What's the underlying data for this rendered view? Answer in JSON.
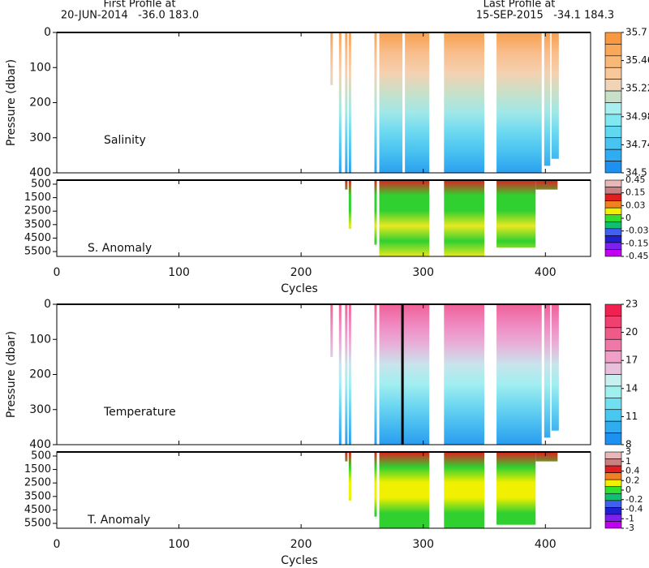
{
  "header": {
    "first_label": "First Profile at",
    "first_info": "20-JUN-2014   -36.0 183.0",
    "last_label": "Last Profile at",
    "last_info": "15-SEP-2015   -34.1 184.3"
  },
  "chart_data": [
    {
      "type": "section",
      "title": "Salinity",
      "ylabel": "Pressure (dbar)",
      "xlim": [
        0,
        437
      ],
      "xticks": [
        0,
        100,
        200,
        300,
        400
      ],
      "ylim": [
        400,
        0
      ],
      "yticks": [
        0,
        100,
        200,
        300,
        400
      ],
      "fill_colors": [
        "#f8a050",
        "#f8bd8a",
        "#f5d0b0",
        "#c8e0c8",
        "#a0e8e8",
        "#6ad8f0",
        "#48c0f0",
        "#2aa0f0"
      ],
      "colorbar": {
        "colors": [
          "#f89840",
          "#f8a858",
          "#f8b878",
          "#f8c898",
          "#f0d4b8",
          "#c8e0c8",
          "#a8f0f0",
          "#80e8f0",
          "#60d8f0",
          "#48c4f0",
          "#30acf0",
          "#1e90f0"
        ],
        "ticks": [
          35.7,
          35.46,
          35.22,
          34.98,
          34.74,
          34.5
        ]
      },
      "regions": [
        {
          "x": [
            224,
            226
          ],
          "depth": 150
        },
        {
          "x": [
            231,
            233
          ],
          "depth": 400
        },
        {
          "x": [
            236,
            238
          ],
          "depth": 400
        },
        {
          "x": [
            239,
            241
          ],
          "depth": 400
        },
        {
          "x": [
            260,
            262
          ],
          "depth": 400
        },
        {
          "x": [
            264,
            283
          ],
          "depth": 400
        },
        {
          "x": [
            285,
            305
          ],
          "depth": 400
        },
        {
          "x": [
            317,
            350
          ],
          "depth": 400
        },
        {
          "x": [
            360,
            397
          ],
          "depth": 400
        },
        {
          "x": [
            399,
            404
          ],
          "depth": 380
        },
        {
          "x": [
            405,
            411
          ],
          "depth": 360
        }
      ]
    },
    {
      "type": "section",
      "title": "S. Anomaly",
      "xlabel": "Cycles",
      "xlim": [
        0,
        437
      ],
      "xticks": [
        0,
        100,
        200,
        300,
        400
      ],
      "ylim": [
        5860,
        200
      ],
      "yticks": [
        500,
        1500,
        2500,
        3500,
        4500,
        5500
      ],
      "fill_colors": [
        "#e02020",
        "#30d030",
        "#30d030",
        "#e8e820",
        "#30d030",
        "#e8e820"
      ],
      "colorbar": {
        "colors": [
          "#e8b8b8",
          "#c88080",
          "#e02020",
          "#f08020",
          "#f0f000",
          "#30e030",
          "#10c070",
          "#4060f0",
          "#2020d0",
          "#8020f0",
          "#c000f0"
        ],
        "ticks": [
          0.45,
          0.15,
          0.03,
          0,
          -0.03,
          -0.15,
          -0.45
        ]
      },
      "regions": [
        {
          "x": [
            236,
            238
          ],
          "depth": 900
        },
        {
          "x": [
            239,
            241
          ],
          "depth": 3800
        },
        {
          "x": [
            260,
            262
          ],
          "depth": 5000
        },
        {
          "x": [
            264,
            305
          ],
          "depth": 5860
        },
        {
          "x": [
            317,
            350
          ],
          "depth": 5860
        },
        {
          "x": [
            360,
            392
          ],
          "depth": 5200
        },
        {
          "x": [
            392,
            410
          ],
          "depth": 900
        }
      ]
    },
    {
      "type": "section",
      "title": "Temperature",
      "ylabel": "Pressure (dbar)",
      "xlim": [
        0,
        437
      ],
      "xticks": [
        0,
        100,
        200,
        300,
        400
      ],
      "ylim": [
        400,
        0
      ],
      "yticks": [
        0,
        100,
        200,
        300,
        400
      ],
      "fill_colors": [
        "#f06098",
        "#f088c0",
        "#e8b0d8",
        "#c8e4ec",
        "#a0eef0",
        "#70d8f0",
        "#48bcf0",
        "#2a9cf0"
      ],
      "colorbar": {
        "colors": [
          "#f02050",
          "#f04070",
          "#f05a88",
          "#f078a8",
          "#f0a0c8",
          "#e8c0dc",
          "#c8f0f0",
          "#a0f0f0",
          "#70e0f0",
          "#48c8f0",
          "#30acf0",
          "#1e90f0"
        ],
        "ticks": [
          23,
          20,
          17,
          14,
          11,
          8
        ]
      },
      "marker_lines": [
        283
      ],
      "regions": [
        {
          "x": [
            224,
            226
          ],
          "depth": 150
        },
        {
          "x": [
            231,
            233
          ],
          "depth": 400
        },
        {
          "x": [
            236,
            238
          ],
          "depth": 400
        },
        {
          "x": [
            239,
            241
          ],
          "depth": 400
        },
        {
          "x": [
            260,
            262
          ],
          "depth": 400
        },
        {
          "x": [
            264,
            305
          ],
          "depth": 400
        },
        {
          "x": [
            317,
            350
          ],
          "depth": 400
        },
        {
          "x": [
            360,
            397
          ],
          "depth": 400
        },
        {
          "x": [
            399,
            404
          ],
          "depth": 380
        },
        {
          "x": [
            405,
            411
          ],
          "depth": 360
        }
      ]
    },
    {
      "type": "section",
      "title": "T. Anomaly",
      "xlabel": "Cycles",
      "xlim": [
        0,
        437
      ],
      "xticks": [
        0,
        100,
        200,
        300,
        400
      ],
      "ylim": [
        5860,
        200
      ],
      "yticks": [
        500,
        1500,
        2500,
        3500,
        4500,
        5500
      ],
      "fill_colors": [
        "#e02020",
        "#30d030",
        "#f0f000",
        "#f0f000",
        "#30d030",
        "#30d030"
      ],
      "colorbar": {
        "colors": [
          "#e8b8b8",
          "#c88080",
          "#e02020",
          "#f08020",
          "#f0f000",
          "#30e030",
          "#10c070",
          "#4060f0",
          "#2020d0",
          "#8020f0",
          "#c000f0"
        ],
        "ticks": [
          3,
          1,
          0.4,
          0.2,
          0,
          -0.2,
          -0.4,
          -1,
          -3
        ]
      },
      "regions": [
        {
          "x": [
            236,
            238
          ],
          "depth": 900
        },
        {
          "x": [
            239,
            241
          ],
          "depth": 3800
        },
        {
          "x": [
            260,
            262
          ],
          "depth": 5000
        },
        {
          "x": [
            264,
            305
          ],
          "depth": 5860
        },
        {
          "x": [
            317,
            350
          ],
          "depth": 5860
        },
        {
          "x": [
            360,
            392
          ],
          "depth": 5600
        },
        {
          "x": [
            392,
            410
          ],
          "depth": 900
        }
      ]
    }
  ]
}
